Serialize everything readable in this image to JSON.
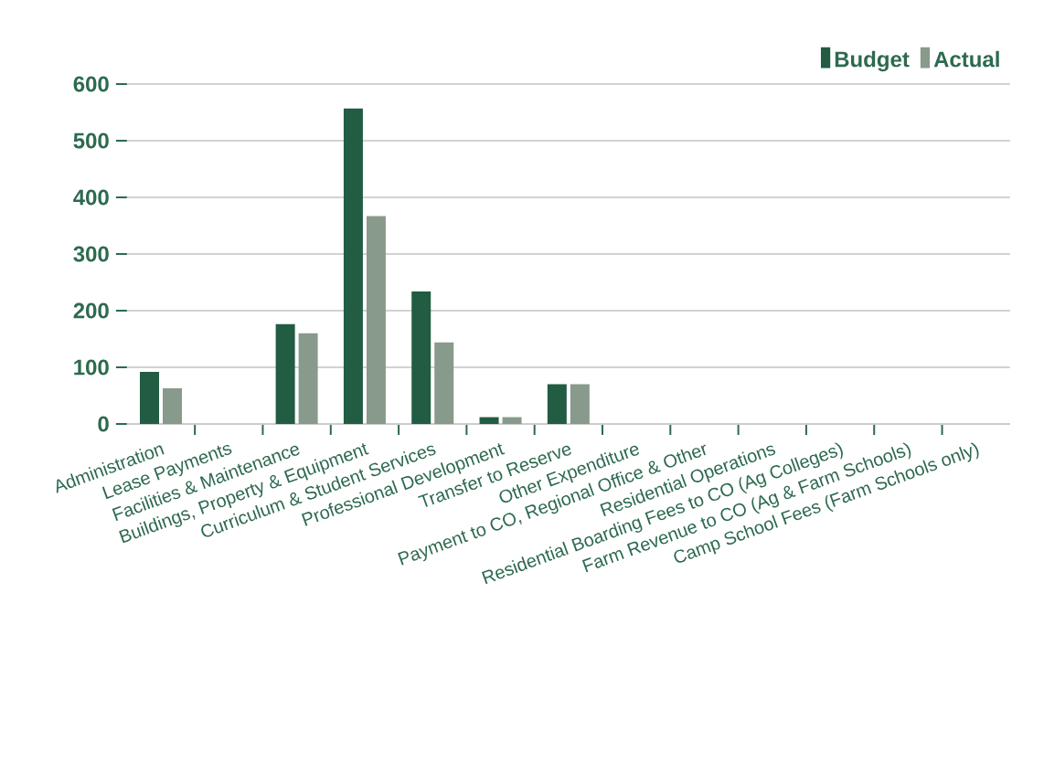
{
  "chart_data": {
    "type": "bar",
    "categories": [
      "Administration",
      "Lease Payments",
      "Facilities & Maintenance",
      "Buildings, Property & Equipment",
      "Curriculum & Student Services",
      "Professional Development",
      "Transfer to Reserve",
      "Other Expenditure",
      "Payment to CO, Regional Office & Other",
      "Residential Operations",
      "Residential Boarding Fees to CO (Ag Colleges)",
      "Farm Revenue to CO (Ag & Farm Schools)",
      "Camp School Fees (Farm Schools only)"
    ],
    "series": [
      {
        "name": "Budget",
        "color": "#215c43",
        "values": [
          92,
          0,
          176,
          557,
          234,
          12,
          70,
          0,
          0,
          0,
          0,
          0,
          0
        ]
      },
      {
        "name": "Actual",
        "color": "#889a8b",
        "values": [
          63,
          0,
          160,
          367,
          144,
          12,
          70,
          0,
          0,
          0,
          0,
          0,
          0
        ]
      }
    ],
    "ylim": [
      0,
      600
    ],
    "yticks": [
      0,
      100,
      200,
      300,
      400,
      500,
      600
    ],
    "grid": "y",
    "legend": "top right"
  }
}
